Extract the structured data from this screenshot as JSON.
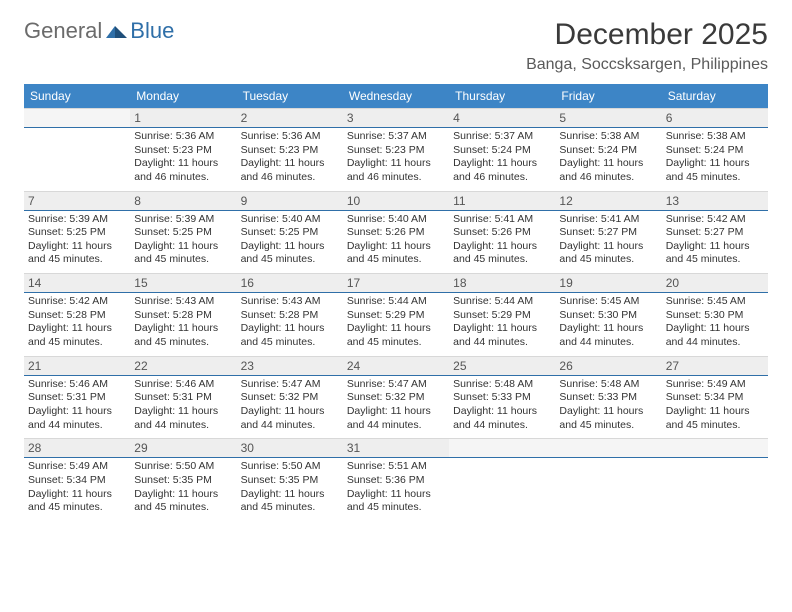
{
  "logo": {
    "general": "General",
    "blue": "Blue"
  },
  "title": "December 2025",
  "location": "Banga, Soccsksargen, Philippines",
  "colors": {
    "header_bg": "#3d85c6",
    "header_text": "#ffffff",
    "daynum_bg": "#eeeeee",
    "daynum_text": "#555555",
    "rule": "#2f6fa8",
    "body_text": "#333333"
  },
  "dayNames": [
    "Sunday",
    "Monday",
    "Tuesday",
    "Wednesday",
    "Thursday",
    "Friday",
    "Saturday"
  ],
  "weeks": [
    [
      {
        "n": "",
        "sunrise": "",
        "sunset": "",
        "daylight": ""
      },
      {
        "n": "1",
        "sunrise": "Sunrise: 5:36 AM",
        "sunset": "Sunset: 5:23 PM",
        "daylight": "Daylight: 11 hours and 46 minutes."
      },
      {
        "n": "2",
        "sunrise": "Sunrise: 5:36 AM",
        "sunset": "Sunset: 5:23 PM",
        "daylight": "Daylight: 11 hours and 46 minutes."
      },
      {
        "n": "3",
        "sunrise": "Sunrise: 5:37 AM",
        "sunset": "Sunset: 5:23 PM",
        "daylight": "Daylight: 11 hours and 46 minutes."
      },
      {
        "n": "4",
        "sunrise": "Sunrise: 5:37 AM",
        "sunset": "Sunset: 5:24 PM",
        "daylight": "Daylight: 11 hours and 46 minutes."
      },
      {
        "n": "5",
        "sunrise": "Sunrise: 5:38 AM",
        "sunset": "Sunset: 5:24 PM",
        "daylight": "Daylight: 11 hours and 46 minutes."
      },
      {
        "n": "6",
        "sunrise": "Sunrise: 5:38 AM",
        "sunset": "Sunset: 5:24 PM",
        "daylight": "Daylight: 11 hours and 45 minutes."
      }
    ],
    [
      {
        "n": "7",
        "sunrise": "Sunrise: 5:39 AM",
        "sunset": "Sunset: 5:25 PM",
        "daylight": "Daylight: 11 hours and 45 minutes."
      },
      {
        "n": "8",
        "sunrise": "Sunrise: 5:39 AM",
        "sunset": "Sunset: 5:25 PM",
        "daylight": "Daylight: 11 hours and 45 minutes."
      },
      {
        "n": "9",
        "sunrise": "Sunrise: 5:40 AM",
        "sunset": "Sunset: 5:25 PM",
        "daylight": "Daylight: 11 hours and 45 minutes."
      },
      {
        "n": "10",
        "sunrise": "Sunrise: 5:40 AM",
        "sunset": "Sunset: 5:26 PM",
        "daylight": "Daylight: 11 hours and 45 minutes."
      },
      {
        "n": "11",
        "sunrise": "Sunrise: 5:41 AM",
        "sunset": "Sunset: 5:26 PM",
        "daylight": "Daylight: 11 hours and 45 minutes."
      },
      {
        "n": "12",
        "sunrise": "Sunrise: 5:41 AM",
        "sunset": "Sunset: 5:27 PM",
        "daylight": "Daylight: 11 hours and 45 minutes."
      },
      {
        "n": "13",
        "sunrise": "Sunrise: 5:42 AM",
        "sunset": "Sunset: 5:27 PM",
        "daylight": "Daylight: 11 hours and 45 minutes."
      }
    ],
    [
      {
        "n": "14",
        "sunrise": "Sunrise: 5:42 AM",
        "sunset": "Sunset: 5:28 PM",
        "daylight": "Daylight: 11 hours and 45 minutes."
      },
      {
        "n": "15",
        "sunrise": "Sunrise: 5:43 AM",
        "sunset": "Sunset: 5:28 PM",
        "daylight": "Daylight: 11 hours and 45 minutes."
      },
      {
        "n": "16",
        "sunrise": "Sunrise: 5:43 AM",
        "sunset": "Sunset: 5:28 PM",
        "daylight": "Daylight: 11 hours and 45 minutes."
      },
      {
        "n": "17",
        "sunrise": "Sunrise: 5:44 AM",
        "sunset": "Sunset: 5:29 PM",
        "daylight": "Daylight: 11 hours and 45 minutes."
      },
      {
        "n": "18",
        "sunrise": "Sunrise: 5:44 AM",
        "sunset": "Sunset: 5:29 PM",
        "daylight": "Daylight: 11 hours and 44 minutes."
      },
      {
        "n": "19",
        "sunrise": "Sunrise: 5:45 AM",
        "sunset": "Sunset: 5:30 PM",
        "daylight": "Daylight: 11 hours and 44 minutes."
      },
      {
        "n": "20",
        "sunrise": "Sunrise: 5:45 AM",
        "sunset": "Sunset: 5:30 PM",
        "daylight": "Daylight: 11 hours and 44 minutes."
      }
    ],
    [
      {
        "n": "21",
        "sunrise": "Sunrise: 5:46 AM",
        "sunset": "Sunset: 5:31 PM",
        "daylight": "Daylight: 11 hours and 44 minutes."
      },
      {
        "n": "22",
        "sunrise": "Sunrise: 5:46 AM",
        "sunset": "Sunset: 5:31 PM",
        "daylight": "Daylight: 11 hours and 44 minutes."
      },
      {
        "n": "23",
        "sunrise": "Sunrise: 5:47 AM",
        "sunset": "Sunset: 5:32 PM",
        "daylight": "Daylight: 11 hours and 44 minutes."
      },
      {
        "n": "24",
        "sunrise": "Sunrise: 5:47 AM",
        "sunset": "Sunset: 5:32 PM",
        "daylight": "Daylight: 11 hours and 44 minutes."
      },
      {
        "n": "25",
        "sunrise": "Sunrise: 5:48 AM",
        "sunset": "Sunset: 5:33 PM",
        "daylight": "Daylight: 11 hours and 44 minutes."
      },
      {
        "n": "26",
        "sunrise": "Sunrise: 5:48 AM",
        "sunset": "Sunset: 5:33 PM",
        "daylight": "Daylight: 11 hours and 45 minutes."
      },
      {
        "n": "27",
        "sunrise": "Sunrise: 5:49 AM",
        "sunset": "Sunset: 5:34 PM",
        "daylight": "Daylight: 11 hours and 45 minutes."
      }
    ],
    [
      {
        "n": "28",
        "sunrise": "Sunrise: 5:49 AM",
        "sunset": "Sunset: 5:34 PM",
        "daylight": "Daylight: 11 hours and 45 minutes."
      },
      {
        "n": "29",
        "sunrise": "Sunrise: 5:50 AM",
        "sunset": "Sunset: 5:35 PM",
        "daylight": "Daylight: 11 hours and 45 minutes."
      },
      {
        "n": "30",
        "sunrise": "Sunrise: 5:50 AM",
        "sunset": "Sunset: 5:35 PM",
        "daylight": "Daylight: 11 hours and 45 minutes."
      },
      {
        "n": "31",
        "sunrise": "Sunrise: 5:51 AM",
        "sunset": "Sunset: 5:36 PM",
        "daylight": "Daylight: 11 hours and 45 minutes."
      },
      {
        "n": "",
        "sunrise": "",
        "sunset": "",
        "daylight": ""
      },
      {
        "n": "",
        "sunrise": "",
        "sunset": "",
        "daylight": ""
      },
      {
        "n": "",
        "sunrise": "",
        "sunset": "",
        "daylight": ""
      }
    ]
  ]
}
